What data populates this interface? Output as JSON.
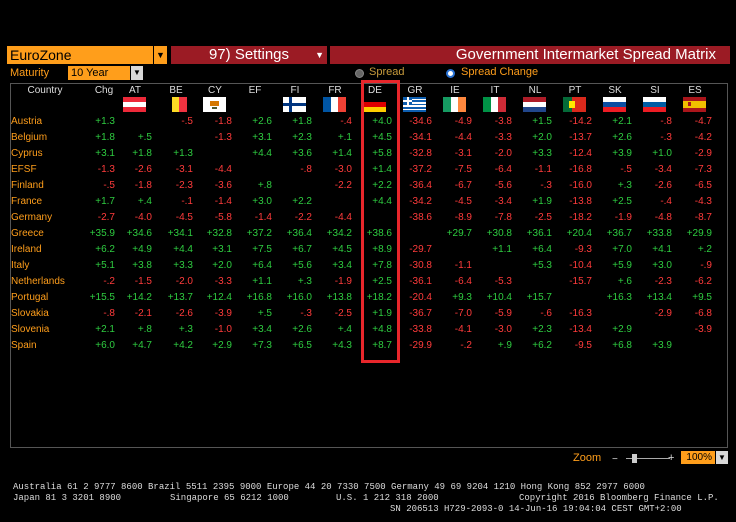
{
  "toolbar": {
    "region": "EuroZone",
    "settings_label": "97) Settings",
    "title": "Government Intermarket Spread Matrix",
    "maturity_label": "Maturity",
    "maturity_value": "10 Year",
    "spread_label": "Spread",
    "spread_change_label": "Spread Change"
  },
  "table": {
    "country_header": "Country",
    "chg_header": "Chg",
    "columns": [
      "AT",
      "BE",
      "CY",
      "EF",
      "FI",
      "FR",
      "DE",
      "GR",
      "IE",
      "IT",
      "NL",
      "PT",
      "SK",
      "SI",
      "ES"
    ],
    "rows": [
      {
        "country": "Austria",
        "chg": "+1.3",
        "cells": [
          "",
          "-.5",
          "-1.8",
          "+2.6",
          "+1.8",
          "-.4",
          "+4.0",
          "-34.6",
          "-4.9",
          "-3.8",
          "+1.5",
          "-14.2",
          "+2.1",
          "-.8",
          "-4.7"
        ]
      },
      {
        "country": "Belgium",
        "chg": "+1.8",
        "cells": [
          "+.5",
          "",
          "-1.3",
          "+3.1",
          "+2.3",
          "+.1",
          "+4.5",
          "-34.1",
          "-4.4",
          "-3.3",
          "+2.0",
          "-13.7",
          "+2.6",
          "-.3",
          "-4.2"
        ]
      },
      {
        "country": "Cyprus",
        "chg": "+3.1",
        "cells": [
          "+1.8",
          "+1.3",
          "",
          "+4.4",
          "+3.6",
          "+1.4",
          "+5.8",
          "-32.8",
          "-3.1",
          "-2.0",
          "+3.3",
          "-12.4",
          "+3.9",
          "+1.0",
          "-2.9"
        ]
      },
      {
        "country": "EFSF",
        "chg": "-1.3",
        "cells": [
          "-2.6",
          "-3.1",
          "-4.4",
          "",
          "-.8",
          "-3.0",
          "+1.4",
          "-37.2",
          "-7.5",
          "-6.4",
          "-1.1",
          "-16.8",
          "-.5",
          "-3.4",
          "-7.3"
        ]
      },
      {
        "country": "Finland",
        "chg": "-.5",
        "cells": [
          "-1.8",
          "-2.3",
          "-3.6",
          "+.8",
          "",
          "-2.2",
          "+2.2",
          "-36.4",
          "-6.7",
          "-5.6",
          "-.3",
          "-16.0",
          "+.3",
          "-2.6",
          "-6.5"
        ]
      },
      {
        "country": "France",
        "chg": "+1.7",
        "cells": [
          "+.4",
          "-.1",
          "-1.4",
          "+3.0",
          "+2.2",
          "",
          "+4.4",
          "-34.2",
          "-4.5",
          "-3.4",
          "+1.9",
          "-13.8",
          "+2.5",
          "-.4",
          "-4.3"
        ]
      },
      {
        "country": "Germany",
        "chg": "-2.7",
        "cells": [
          "-4.0",
          "-4.5",
          "-5.8",
          "-1.4",
          "-2.2",
          "-4.4",
          "",
          "-38.6",
          "-8.9",
          "-7.8",
          "-2.5",
          "-18.2",
          "-1.9",
          "-4.8",
          "-8.7"
        ]
      },
      {
        "country": "Greece",
        "chg": "+35.9",
        "cells": [
          "+34.6",
          "+34.1",
          "+32.8",
          "+37.2",
          "+36.4",
          "+34.2",
          "+38.6",
          "",
          "+29.7",
          "+30.8",
          "+36.1",
          "+20.4",
          "+36.7",
          "+33.8",
          "+29.9"
        ]
      },
      {
        "country": "Ireland",
        "chg": "+6.2",
        "cells": [
          "+4.9",
          "+4.4",
          "+3.1",
          "+7.5",
          "+6.7",
          "+4.5",
          "+8.9",
          "-29.7",
          "",
          "+1.1",
          "+6.4",
          "-9.3",
          "+7.0",
          "+4.1",
          "+.2"
        ]
      },
      {
        "country": "Italy",
        "chg": "+5.1",
        "cells": [
          "+3.8",
          "+3.3",
          "+2.0",
          "+6.4",
          "+5.6",
          "+3.4",
          "+7.8",
          "-30.8",
          "-1.1",
          "",
          "+5.3",
          "-10.4",
          "+5.9",
          "+3.0",
          "-.9"
        ]
      },
      {
        "country": "Netherlands",
        "chg": "-.2",
        "cells": [
          "-1.5",
          "-2.0",
          "-3.3",
          "+1.1",
          "+.3",
          "-1.9",
          "+2.5",
          "-36.1",
          "-6.4",
          "-5.3",
          "",
          "-15.7",
          "+.6",
          "-2.3",
          "-6.2"
        ]
      },
      {
        "country": "Portugal",
        "chg": "+15.5",
        "cells": [
          "+14.2",
          "+13.7",
          "+12.4",
          "+16.8",
          "+16.0",
          "+13.8",
          "+18.2",
          "-20.4",
          "+9.3",
          "+10.4",
          "+15.7",
          "",
          "+16.3",
          "+13.4",
          "+9.5"
        ]
      },
      {
        "country": "Slovakia",
        "chg": "-.8",
        "cells": [
          "-2.1",
          "-2.6",
          "-3.9",
          "+.5",
          "-.3",
          "-2.5",
          "+1.9",
          "-36.7",
          "-7.0",
          "-5.9",
          "-.6",
          "-16.3",
          "",
          "-2.9",
          "-6.8"
        ]
      },
      {
        "country": "Slovenia",
        "chg": "+2.1",
        "cells": [
          "+.8",
          "+.3",
          "-1.0",
          "+3.4",
          "+2.6",
          "+.4",
          "+4.8",
          "-33.8",
          "-4.1",
          "-3.0",
          "+2.3",
          "-13.4",
          "+2.9",
          "",
          "-3.9"
        ]
      },
      {
        "country": "Spain",
        "chg": "+6.0",
        "cells": [
          "+4.7",
          "+4.2",
          "+2.9",
          "+7.3",
          "+6.5",
          "+4.3",
          "+8.7",
          "-29.9",
          "-.2",
          "+.9",
          "+6.2",
          "-9.5",
          "+6.8",
          "+3.9",
          ""
        ]
      }
    ]
  },
  "zoom": {
    "label": "Zoom",
    "minus": "−",
    "plus": "+",
    "value": "100%"
  },
  "footer": {
    "line1": "Australia 61 2 9777 8600 Brazil 5511 2395 9000 Europe 44 20 7330 7500 Germany 49 69 9204 1210 Hong Kong 852 2977 6000",
    "line2a": "Japan 81 3 3201 8900",
    "line2b": "Singapore 65 6212 1000",
    "line2c": "U.S. 1 212 318 2000",
    "line2d": "Copyright 2016 Bloomberg Finance L.P.",
    "line3": "SN 206513 H729-2093-0 14-Jun-16 19:04:04 CEST GMT+2:00"
  },
  "colors": {
    "accent": "#ff9e1b",
    "header_bg": "#9b1b24",
    "positive": "#2ecc40",
    "negative": "#ff3b3b",
    "highlight": "#e8262b"
  }
}
